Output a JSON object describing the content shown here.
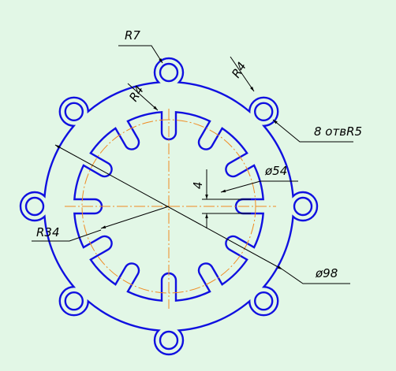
{
  "annotations": {
    "r7": "R7",
    "r4_top": "R4",
    "r4_left": "R4",
    "holes": "8 отвR5",
    "d54": "ø54",
    "gap": "4",
    "r34": "R34",
    "d98": "ø98"
  }
}
